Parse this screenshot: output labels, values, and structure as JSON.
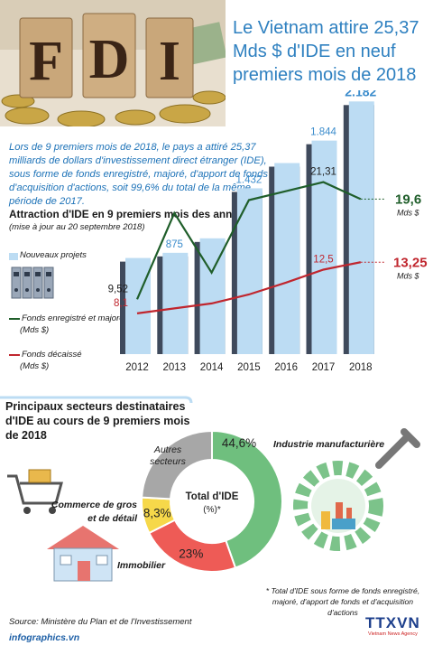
{
  "title": "Le Vietnam attire 25,37 Mds $ d'IDE en neuf premiers mois de 2018",
  "hero_text": "FDI",
  "intro": "Lors de 9 premiers mois de 2018, le pays a attiré 25,37 milliards de dollars d'investissement direct étranger (IDE), sous forme de fonds enregistré, majoré, d'apport de fonds et d'acquisition d'actions, soit 99,6% du total de la même période de 2017.",
  "chart_title": "Attraction d'IDE en 9 premiers mois des années",
  "chart_note": "(mise à jour au 20 septembre 2018)",
  "legend": {
    "projects": "Nouveaux projets",
    "registered": "Fonds enregistré et majoré",
    "registered_unit": "(Mds $)",
    "disbursed": "Fonds décaissé",
    "disbursed_unit": "(Mds $)"
  },
  "line_end_labels": {
    "registered_value": "19,6",
    "registered_unit": "Mds $",
    "disbursed_value": "13,25",
    "disbursed_unit": "Mds $"
  },
  "colors": {
    "bar": "#bcdcf3",
    "bar_shadow": "#3f4a5c",
    "registered": "#1f5e2a",
    "disbursed": "#c0262e",
    "title": "#2e80c0",
    "pie_green": "#6fbf7e",
    "pie_red": "#ee5b56",
    "pie_yellow": "#f6d84a",
    "pie_gray": "#a7a7a7"
  },
  "chart_data": [
    {
      "type": "bar",
      "title": "Attraction d'IDE en 9 premiers mois des années",
      "categories": [
        "2012",
        "2013",
        "2014",
        "2015",
        "2016",
        "2017",
        "2018"
      ],
      "series": [
        {
          "name": "Nouveaux projets",
          "values": [
            null,
            875,
            null,
            1432,
            null,
            1844,
            2182
          ],
          "labels": [
            "",
            "875",
            "",
            "1.432",
            "",
            "1.844",
            "2.182"
          ],
          "estimated_values": [
            830,
            875,
            1000,
            1432,
            1650,
            1844,
            2182
          ]
        },
        {
          "name": "Fonds enregistré et majoré",
          "unit": "Mds $",
          "values": [
            9.52,
            null,
            null,
            null,
            null,
            21.31,
            19.6
          ],
          "labels": [
            "9,52",
            "",
            "",
            "",
            "",
            "21,31",
            "19,6"
          ]
        },
        {
          "name": "Fonds décaissé",
          "unit": "Mds $",
          "values": [
            8.1,
            null,
            null,
            null,
            null,
            12.5,
            13.25
          ],
          "labels": [
            "8,1",
            "",
            "",
            "",
            "",
            "12,5",
            "13,25"
          ]
        }
      ]
    },
    {
      "type": "pie",
      "title": "Principaux secteurs destinataires d'IDE au cours de 9 premiers mois de 2018",
      "center_label": "Total d'IDE (%)*",
      "slices": [
        {
          "name": "Industrie manufacturière",
          "value": 44.6,
          "label": "44,6%"
        },
        {
          "name": "Immobilier",
          "value": 23,
          "label": "23%"
        },
        {
          "name": "Commerce de gros et de détail",
          "value": 8.3,
          "label": "8,3%"
        },
        {
          "name": "Autres secteurs",
          "value": 24.1,
          "label": ""
        }
      ]
    }
  ],
  "sectors_title": "Principaux secteurs destinataires d'IDE au cours de 9 premiers mois de 2018",
  "pie_labels": {
    "manufacturing": "Industrie manufacturière",
    "commerce": "Commerce de gros et de détail",
    "realestate": "Immobilier",
    "others": "Autres secteurs",
    "center": "Total d'IDE",
    "center_unit": "(%)*"
  },
  "footnote": "* Total d'IDE sous forme de fonds enregistré, majoré, d'apport de fonds et d'acquisition d'actions",
  "source": "Source: Ministère du Plan et de l'Investissement",
  "site": "infographics.vn",
  "logo": "TTXVN",
  "logo_sub": "Vietnam News Agency"
}
